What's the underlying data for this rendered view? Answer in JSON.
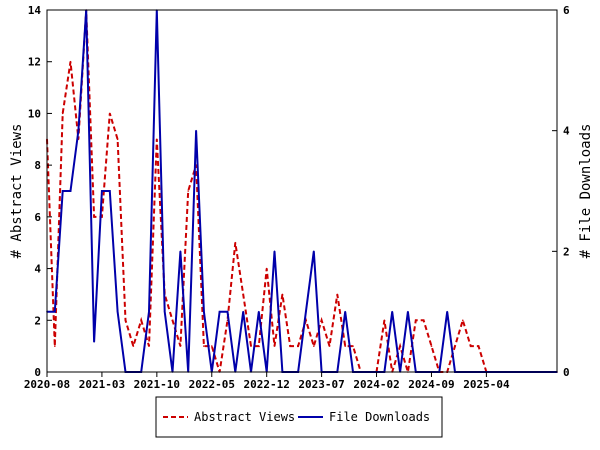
{
  "chart_data": {
    "type": "line",
    "ylabel": "# Abstract Views",
    "y2label": "# File Downloads",
    "ylim": [
      0,
      14
    ],
    "y2lim": [
      0,
      6
    ],
    "yticks": [
      "0",
      "2",
      "4",
      "6",
      "8",
      "10",
      "12",
      "14"
    ],
    "y2ticks": [
      "0",
      "2",
      "4",
      "6"
    ],
    "xlim": [
      "2020-08",
      "2026-01"
    ],
    "xticks": [
      "2020-08",
      "2021-03",
      "2021-10",
      "2022-05",
      "2022-12",
      "2023-07",
      "2024-02",
      "2024-09",
      "2025-04"
    ],
    "grid": false,
    "legend": "bottom",
    "x": [
      "2020-08",
      "2020-09",
      "2020-10",
      "2020-11",
      "2020-12",
      "2021-01",
      "2021-02",
      "2021-03",
      "2021-04",
      "2021-05",
      "2021-06",
      "2021-07",
      "2021-08",
      "2021-09",
      "2021-10",
      "2021-11",
      "2021-12",
      "2022-01",
      "2022-02",
      "2022-03",
      "2022-04",
      "2022-05",
      "2022-06",
      "2022-07",
      "2022-08",
      "2022-09",
      "2022-10",
      "2022-11",
      "2022-12",
      "2023-01",
      "2023-02",
      "2023-03",
      "2023-04",
      "2023-05",
      "2023-06",
      "2023-07",
      "2023-08",
      "2023-09",
      "2023-10",
      "2023-11",
      "2023-12",
      "2024-01",
      "2024-02",
      "2024-03",
      "2024-04",
      "2024-05",
      "2024-06",
      "2024-07",
      "2024-08",
      "2024-09",
      "2024-10",
      "2024-11",
      "2024-12",
      "2025-01",
      "2025-02",
      "2025-03",
      "2025-04",
      "2025-05",
      "2025-06",
      "2025-07",
      "2025-08",
      "2025-09",
      "2025-10",
      "2025-11",
      "2025-12",
      "2026-01"
    ],
    "series": [
      {
        "name": "Abstract Views",
        "axis": "left",
        "color": "#cc0000",
        "dash": true,
        "values": [
          9,
          1,
          10,
          12,
          9,
          14,
          6,
          6,
          10,
          9,
          2,
          1,
          2,
          1,
          9,
          3,
          2,
          1,
          7,
          8,
          1,
          1,
          0,
          2,
          5,
          3,
          1,
          1,
          4,
          1,
          3,
          1,
          1,
          2,
          1,
          2,
          1,
          3,
          1,
          1,
          0,
          0,
          0,
          2,
          0,
          1,
          0,
          2,
          2,
          1,
          0,
          0,
          1,
          2,
          1,
          1,
          0,
          0,
          0,
          0,
          0,
          0,
          0,
          0,
          0,
          0
        ]
      },
      {
        "name": "File Downloads",
        "axis": "right",
        "color": "#0000aa",
        "dash": false,
        "values": [
          1,
          1,
          3,
          3,
          4,
          6,
          0.5,
          3,
          3,
          1,
          0,
          0,
          0,
          1,
          6,
          1,
          0,
          2,
          0,
          4,
          1,
          0,
          1,
          1,
          0,
          1,
          0,
          1,
          0,
          2,
          0,
          0,
          0,
          1,
          2,
          0,
          0,
          0,
          1,
          0,
          0,
          0,
          0,
          0,
          1,
          0,
          1,
          0,
          0,
          0,
          0,
          1,
          0,
          0,
          0,
          0,
          0,
          0,
          0,
          0,
          0,
          0,
          0,
          0,
          0,
          0
        ]
      }
    ]
  }
}
